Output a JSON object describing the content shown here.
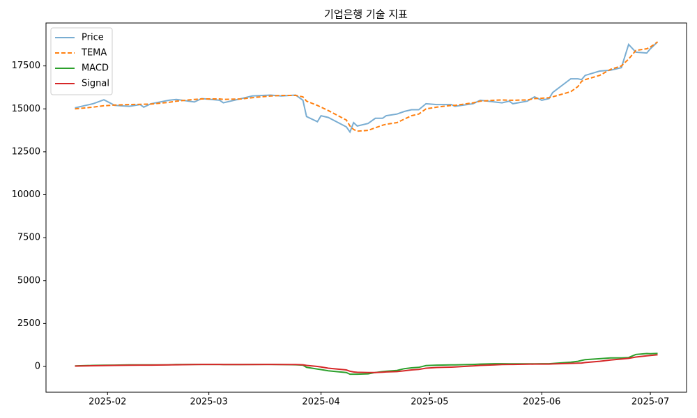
{
  "chart_data": {
    "type": "line",
    "title": "기업은행 기술 지표",
    "x": [
      22,
      27,
      30,
      33,
      37,
      40,
      41,
      43,
      48,
      50,
      55,
      57,
      62,
      63,
      68,
      71,
      76,
      79,
      83,
      85,
      86,
      89,
      90,
      92,
      97,
      98,
      99,
      100,
      103,
      105,
      107,
      108,
      111,
      113,
      115,
      117,
      119,
      122,
      126,
      127,
      132,
      134,
      138,
      140,
      142,
      143,
      147,
      149,
      151,
      153,
      154,
      159,
      161,
      162,
      163,
      167,
      170,
      173,
      175,
      177,
      180,
      181,
      183
    ],
    "xlim": [
      14,
      191
    ],
    "xticks": [
      {
        "value": 31,
        "label": "2025-02"
      },
      {
        "value": 59,
        "label": "2025-03"
      },
      {
        "value": 90,
        "label": "2025-04"
      },
      {
        "value": 120,
        "label": "2025-05"
      },
      {
        "value": 151,
        "label": "2025-06"
      },
      {
        "value": 181,
        "label": "2025-07"
      }
    ],
    "ylim": [
      -1500,
      20000
    ],
    "yticks": [
      0,
      2500,
      5000,
      7500,
      10000,
      12500,
      15000,
      17500
    ],
    "legend": "upper left",
    "series": [
      {
        "name": "Price",
        "color": "#1f77b4",
        "alpha": 0.6,
        "linestyle": "-",
        "values": [
          15060,
          15300,
          15530,
          15200,
          15150,
          15250,
          15100,
          15300,
          15500,
          15550,
          15400,
          15600,
          15500,
          15350,
          15600,
          15750,
          15800,
          15750,
          15800,
          15500,
          14550,
          14250,
          14600,
          14500,
          13950,
          13650,
          14200,
          14000,
          14150,
          14450,
          14450,
          14600,
          14700,
          14850,
          14950,
          14950,
          15300,
          15250,
          15250,
          15150,
          15300,
          15500,
          15400,
          15350,
          15450,
          15300,
          15450,
          15700,
          15500,
          15600,
          15950,
          16750,
          16750,
          16700,
          16950,
          17200,
          17250,
          17400,
          18750,
          18300,
          18250,
          18500,
          18900
        ]
      },
      {
        "name": "TEMA",
        "color": "#ff7f0e",
        "alpha": 1,
        "linestyle": "--",
        "values": [
          15000,
          15100,
          15180,
          15220,
          15250,
          15260,
          15270,
          15280,
          15380,
          15450,
          15550,
          15580,
          15580,
          15550,
          15580,
          15650,
          15750,
          15780,
          15780,
          15700,
          15450,
          15200,
          15100,
          14900,
          14350,
          14000,
          13800,
          13700,
          13750,
          13900,
          14050,
          14100,
          14200,
          14400,
          14600,
          14700,
          15000,
          15100,
          15200,
          15200,
          15350,
          15450,
          15500,
          15520,
          15500,
          15500,
          15520,
          15600,
          15620,
          15650,
          15700,
          16000,
          16300,
          16600,
          16700,
          16950,
          17300,
          17500,
          17900,
          18400,
          18500,
          18600,
          18900
        ]
      },
      {
        "name": "MACD",
        "color": "#2ca02c",
        "alpha": 1,
        "linestyle": "-",
        "values": [
          30,
          60,
          70,
          80,
          90,
          90,
          90,
          95,
          100,
          110,
          120,
          120,
          120,
          110,
          110,
          120,
          120,
          110,
          100,
          80,
          -50,
          -150,
          -180,
          -250,
          -350,
          -450,
          -450,
          -450,
          -430,
          -350,
          -300,
          -280,
          -230,
          -130,
          -80,
          -50,
          50,
          80,
          90,
          90,
          120,
          140,
          160,
          160,
          150,
          150,
          150,
          150,
          160,
          160,
          170,
          250,
          300,
          350,
          400,
          450,
          500,
          500,
          520,
          700,
          750,
          740,
          760
        ]
      },
      {
        "name": "Signal",
        "color": "#d62728",
        "alpha": 1,
        "linestyle": "-",
        "values": [
          20,
          40,
          50,
          60,
          70,
          80,
          80,
          80,
          90,
          100,
          110,
          120,
          120,
          110,
          110,
          110,
          120,
          115,
          110,
          100,
          60,
          0,
          -30,
          -100,
          -200,
          -280,
          -320,
          -340,
          -350,
          -350,
          -330,
          -320,
          -300,
          -250,
          -200,
          -170,
          -100,
          -60,
          -40,
          -30,
          30,
          60,
          90,
          110,
          120,
          120,
          130,
          140,
          140,
          140,
          145,
          180,
          190,
          200,
          230,
          300,
          380,
          430,
          470,
          550,
          620,
          640,
          680
        ]
      }
    ]
  }
}
